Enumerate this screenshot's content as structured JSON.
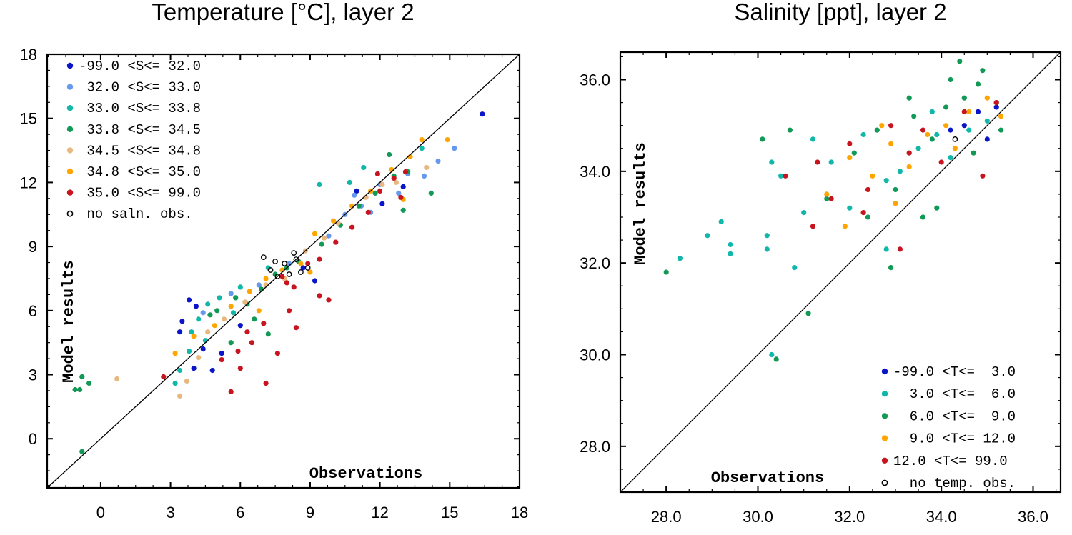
{
  "chart_data": [
    {
      "type": "scatter",
      "title": "Temperature [°C], layer 2",
      "xlabel": "Observations",
      "ylabel": "Model results",
      "xlim": [
        -2.3,
        18
      ],
      "ylim": [
        -2.3,
        18
      ],
      "xticks": [
        0,
        3,
        6,
        9,
        12,
        15,
        18
      ],
      "yticks": [
        0,
        3,
        6,
        9,
        12,
        15,
        18
      ],
      "x_tick_labels": [
        "0",
        "3",
        "6",
        "9",
        "12",
        "15",
        "18"
      ],
      "y_tick_labels": [
        "0",
        "3",
        "6",
        "9",
        "12",
        "15",
        "18"
      ],
      "grid": false,
      "reference_line": "1:1 diagonal",
      "legend_position": "top-left",
      "legend_title": "",
      "series": [
        {
          "name": "-99.0 <S<= 32.0",
          "color": "#0a14c8",
          "marker": "filled-circle",
          "points": [
            [
              3.5,
              5.5
            ],
            [
              3.8,
              6.5
            ],
            [
              4.1,
              6.2
            ],
            [
              3.4,
              5.0
            ],
            [
              4.4,
              4.2
            ],
            [
              4.0,
              3.3
            ],
            [
              4.8,
              3.2
            ],
            [
              5.2,
              4.0
            ],
            [
              9.2,
              7.4
            ],
            [
              8.7,
              8.0
            ],
            [
              12.1,
              11.0
            ],
            [
              13.0,
              11.8
            ],
            [
              16.4,
              15.2
            ],
            [
              11.0,
              11.6
            ],
            [
              6.0,
              5.3
            ]
          ]
        },
        {
          "name": "32.0 <S<= 33.0",
          "color": "#6699ee",
          "marker": "filled-circle",
          "points": [
            [
              11.2,
              10.9
            ],
            [
              10.5,
              10.5
            ],
            [
              12.0,
              11.9
            ],
            [
              13.2,
              12.4
            ],
            [
              14.5,
              13.0
            ],
            [
              15.2,
              13.6
            ],
            [
              12.8,
              11.5
            ],
            [
              8.1,
              8.2
            ],
            [
              5.6,
              6.8
            ],
            [
              4.4,
              5.9
            ],
            [
              6.8,
              7.2
            ],
            [
              10.9,
              11.4
            ],
            [
              11.6,
              10.6
            ],
            [
              13.9,
              12.3
            ],
            [
              9.8,
              9.5
            ]
          ]
        },
        {
          "name": "33.0 <S<= 33.8",
          "color": "#11b8aa",
          "marker": "filled-circle",
          "points": [
            [
              3.9,
              5.0
            ],
            [
              4.2,
              5.6
            ],
            [
              4.6,
              6.3
            ],
            [
              5.1,
              6.6
            ],
            [
              4.5,
              4.6
            ],
            [
              3.8,
              4.1
            ],
            [
              3.4,
              3.2
            ],
            [
              3.2,
              2.6
            ],
            [
              10.7,
              12.0
            ],
            [
              9.4,
              11.9
            ],
            [
              11.3,
              12.7
            ],
            [
              13.8,
              13.6
            ],
            [
              7.2,
              8.0
            ],
            [
              6.0,
              7.1
            ],
            [
              5.7,
              5.9
            ]
          ]
        },
        {
          "name": "33.8 <S<= 34.5",
          "color": "#119955",
          "marker": "filled-circle",
          "points": [
            [
              -1.1,
              2.3
            ],
            [
              -0.9,
              2.3
            ],
            [
              -0.8,
              2.9
            ],
            [
              -0.5,
              2.6
            ],
            [
              -0.8,
              -0.6
            ],
            [
              5.0,
              6.0
            ],
            [
              5.8,
              6.6
            ],
            [
              6.3,
              6.3
            ],
            [
              6.9,
              7.0
            ],
            [
              7.5,
              7.7
            ],
            [
              8.0,
              8.0
            ],
            [
              8.5,
              8.3
            ],
            [
              9.5,
              9.1
            ],
            [
              10.3,
              10.0
            ],
            [
              11.1,
              10.9
            ],
            [
              11.8,
              11.5
            ],
            [
              12.6,
              12.3
            ],
            [
              13.2,
              12.5
            ],
            [
              14.2,
              11.5
            ],
            [
              13.0,
              10.7
            ],
            [
              12.4,
              13.3
            ],
            [
              6.6,
              5.6
            ],
            [
              7.2,
              4.9
            ],
            [
              5.6,
              4.5
            ],
            [
              4.7,
              5.8
            ]
          ]
        },
        {
          "name": "34.5 <S<= 34.8",
          "color": "#e8b880",
          "marker": "filled-circle",
          "points": [
            [
              0.7,
              2.8
            ],
            [
              3.4,
              2.0
            ],
            [
              3.7,
              2.7
            ],
            [
              4.2,
              3.8
            ],
            [
              4.6,
              5.0
            ],
            [
              5.3,
              5.6
            ],
            [
              6.2,
              6.4
            ],
            [
              7.1,
              7.2
            ],
            [
              7.9,
              7.5
            ],
            [
              8.8,
              8.8
            ],
            [
              9.6,
              9.4
            ],
            [
              10.2,
              10.1
            ],
            [
              11.4,
              11.3
            ],
            [
              12.1,
              11.9
            ],
            [
              12.7,
              12.0
            ],
            [
              14.0,
              12.7
            ]
          ]
        },
        {
          "name": "34.8 <S<= 35.0",
          "color": "#ffa500",
          "marker": "filled-circle",
          "points": [
            [
              3.2,
              4.0
            ],
            [
              4.0,
              4.8
            ],
            [
              4.9,
              5.3
            ],
            [
              5.6,
              6.2
            ],
            [
              6.4,
              6.9
            ],
            [
              7.1,
              7.5
            ],
            [
              7.8,
              7.9
            ],
            [
              8.6,
              8.2
            ],
            [
              9.2,
              9.6
            ],
            [
              10.0,
              10.2
            ],
            [
              10.8,
              10.9
            ],
            [
              11.6,
              11.6
            ],
            [
              12.5,
              12.6
            ],
            [
              13.3,
              13.2
            ],
            [
              13.8,
              14.0
            ],
            [
              14.9,
              14.0
            ],
            [
              13.0,
              11.2
            ],
            [
              9.0,
              7.8
            ],
            [
              6.8,
              6.0
            ]
          ]
        },
        {
          "name": "35.0 <S<= 99.0",
          "color": "#c8141e",
          "marker": "filled-circle",
          "points": [
            [
              2.7,
              2.9
            ],
            [
              5.6,
              2.2
            ],
            [
              7.1,
              2.6
            ],
            [
              6.0,
              3.3
            ],
            [
              7.6,
              4.0
            ],
            [
              6.5,
              4.5
            ],
            [
              5.2,
              3.7
            ],
            [
              8.4,
              5.2
            ],
            [
              9.4,
              6.7
            ],
            [
              9.8,
              6.5
            ],
            [
              8.1,
              6.0
            ],
            [
              8.0,
              7.3
            ],
            [
              7.8,
              7.6
            ],
            [
              8.3,
              7.1
            ],
            [
              8.9,
              8.2
            ],
            [
              9.4,
              8.4
            ],
            [
              10.1,
              9.2
            ],
            [
              10.8,
              9.9
            ],
            [
              11.5,
              10.6
            ],
            [
              12.0,
              11.6
            ],
            [
              12.6,
              12.2
            ],
            [
              13.1,
              12.5
            ],
            [
              12.9,
              11.3
            ],
            [
              11.9,
              12.4
            ],
            [
              7.0,
              5.4
            ],
            [
              6.3,
              5.0
            ],
            [
              5.9,
              4.1
            ]
          ]
        },
        {
          "name": "no saln. obs.",
          "color": "#000000",
          "marker": "open-circle",
          "points": [
            [
              7.0,
              8.5
            ],
            [
              7.5,
              8.3
            ],
            [
              7.3,
              7.9
            ],
            [
              7.9,
              8.2
            ],
            [
              8.4,
              8.4
            ],
            [
              8.6,
              7.8
            ],
            [
              8.1,
              7.7
            ],
            [
              7.6,
              7.6
            ],
            [
              8.9,
              8.0
            ],
            [
              8.3,
              8.7
            ]
          ]
        }
      ]
    },
    {
      "type": "scatter",
      "title": "Salinity [ppt], layer 2",
      "xlabel": "Observations",
      "ylabel": "Model results",
      "xlim": [
        27.0,
        36.6
      ],
      "ylim": [
        27.0,
        36.6
      ],
      "xticks": [
        28.0,
        30.0,
        32.0,
        34.0,
        36.0
      ],
      "yticks": [
        28.0,
        30.0,
        32.0,
        34.0,
        36.0
      ],
      "x_tick_labels": [
        "28.0",
        "30.0",
        "32.0",
        "34.0",
        "36.0"
      ],
      "y_tick_labels": [
        "28.0",
        "30.0",
        "32.0",
        "34.0",
        "36.0"
      ],
      "grid": false,
      "reference_line": "1:1 diagonal",
      "legend_position": "bottom-right",
      "legend_title": "",
      "series": [
        {
          "name": "-99.0 <T<=  3.0",
          "color": "#0a14c8",
          "marker": "filled-circle",
          "points": [
            [
              34.5,
              35.0
            ],
            [
              34.8,
              35.3
            ],
            [
              35.0,
              34.7
            ],
            [
              34.2,
              34.9
            ],
            [
              35.2,
              35.4
            ]
          ]
        },
        {
          "name": "3.0 <T<=  6.0",
          "color": "#11b8aa",
          "marker": "filled-circle",
          "points": [
            [
              28.3,
              32.1
            ],
            [
              28.9,
              32.6
            ],
            [
              29.2,
              32.9
            ],
            [
              29.4,
              32.4
            ],
            [
              29.4,
              32.2
            ],
            [
              30.2,
              32.6
            ],
            [
              30.2,
              32.3
            ],
            [
              30.3,
              30.0
            ],
            [
              30.5,
              33.9
            ],
            [
              30.3,
              34.2
            ],
            [
              30.8,
              31.9
            ],
            [
              31.0,
              33.1
            ],
            [
              31.2,
              34.7
            ],
            [
              31.6,
              34.2
            ],
            [
              32.0,
              33.2
            ],
            [
              32.3,
              34.8
            ],
            [
              32.8,
              33.8
            ],
            [
              33.1,
              34.0
            ],
            [
              33.5,
              34.5
            ],
            [
              33.9,
              34.8
            ],
            [
              34.2,
              34.3
            ],
            [
              34.6,
              34.9
            ],
            [
              35.0,
              35.1
            ],
            [
              33.8,
              35.3
            ],
            [
              32.8,
              32.3
            ]
          ]
        },
        {
          "name": "6.0 <T<=  9.0",
          "color": "#119955",
          "marker": "filled-circle",
          "points": [
            [
              28.0,
              31.8
            ],
            [
              30.4,
              29.9
            ],
            [
              31.1,
              30.9
            ],
            [
              30.1,
              34.7
            ],
            [
              30.7,
              34.9
            ],
            [
              31.5,
              33.4
            ],
            [
              32.1,
              34.4
            ],
            [
              32.6,
              34.9
            ],
            [
              33.0,
              33.6
            ],
            [
              33.4,
              35.2
            ],
            [
              33.8,
              34.7
            ],
            [
              34.1,
              35.4
            ],
            [
              34.5,
              35.6
            ],
            [
              34.8,
              35.9
            ],
            [
              35.2,
              35.5
            ],
            [
              34.4,
              36.4
            ],
            [
              34.9,
              36.2
            ],
            [
              33.6,
              33.0
            ],
            [
              32.9,
              31.9
            ],
            [
              33.3,
              35.6
            ],
            [
              34.7,
              34.4
            ],
            [
              35.3,
              34.9
            ],
            [
              33.9,
              33.2
            ],
            [
              32.4,
              33.0
            ],
            [
              34.2,
              36.0
            ]
          ]
        },
        {
          "name": "9.0 <T<= 12.0",
          "color": "#ffa500",
          "marker": "filled-circle",
          "points": [
            [
              31.5,
              33.5
            ],
            [
              32.0,
              34.3
            ],
            [
              32.5,
              33.9
            ],
            [
              32.9,
              34.6
            ],
            [
              33.3,
              34.1
            ],
            [
              33.7,
              34.8
            ],
            [
              34.1,
              35.0
            ],
            [
              34.6,
              35.3
            ],
            [
              35.0,
              35.6
            ],
            [
              35.3,
              35.2
            ],
            [
              33.0,
              33.3
            ],
            [
              34.3,
              34.5
            ],
            [
              31.9,
              32.8
            ],
            [
              32.7,
              35.0
            ]
          ]
        },
        {
          "name": "12.0 <T<= 99.0",
          "color": "#c8141e",
          "marker": "filled-circle",
          "points": [
            [
              30.6,
              33.9
            ],
            [
              31.2,
              32.8
            ],
            [
              31.3,
              34.2
            ],
            [
              31.6,
              33.4
            ],
            [
              32.0,
              34.6
            ],
            [
              32.4,
              33.6
            ],
            [
              32.9,
              35.0
            ],
            [
              33.3,
              34.4
            ],
            [
              33.6,
              34.9
            ],
            [
              34.0,
              34.2
            ],
            [
              34.5,
              35.3
            ],
            [
              35.2,
              35.5
            ],
            [
              34.9,
              33.9
            ],
            [
              33.1,
              32.3
            ],
            [
              32.3,
              33.1
            ]
          ]
        },
        {
          "name": "no temp. obs.",
          "color": "#000000",
          "marker": "open-circle",
          "points": [
            [
              34.3,
              34.7
            ]
          ]
        }
      ]
    }
  ]
}
